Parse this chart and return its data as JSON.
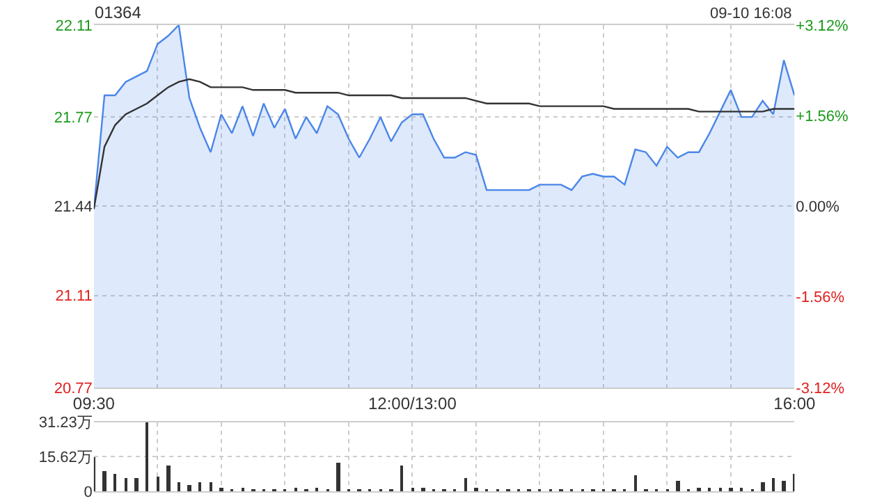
{
  "chart_data": [
    {
      "type": "line",
      "title": "01364",
      "annotations": [
        "09-10 16:08"
      ],
      "grid": true,
      "categories": [
        "09:30",
        null,
        null,
        null,
        null,
        null,
        null,
        null,
        null,
        null,
        null,
        null,
        null,
        null,
        null,
        null,
        null,
        null,
        null,
        null,
        null,
        null,
        null,
        null,
        null,
        null,
        null,
        null,
        null,
        null,
        "12:00/13:00",
        null,
        null,
        null,
        null,
        null,
        null,
        null,
        null,
        null,
        null,
        null,
        null,
        null,
        null,
        null,
        null,
        null,
        null,
        null,
        null,
        null,
        null,
        null,
        null,
        null,
        null,
        null,
        null,
        null,
        null,
        null,
        null,
        null,
        null,
        null,
        "16:00"
      ],
      "ylim": [
        20.77,
        22.11
      ],
      "yticks": [
        20.77,
        21.11,
        21.44,
        21.77,
        22.11
      ],
      "y2lim": [
        -3.12,
        3.12
      ],
      "y2ticks": [
        {
          "value": -3.12,
          "label": "-3.12%"
        },
        {
          "value": -1.56,
          "label": "-1.56%"
        },
        {
          "value": 0,
          "label": "0.00%"
        },
        {
          "value": 1.56,
          "label": "+1.56%"
        },
        {
          "value": 3.12,
          "label": "+3.12%"
        }
      ],
      "series": [
        {
          "type": "area",
          "color": "#4a86e8",
          "values": [
            21.43,
            21.85,
            21.85,
            21.9,
            21.92,
            21.94,
            22.04,
            22.07,
            22.11,
            21.84,
            21.73,
            21.64,
            21.78,
            21.71,
            21.81,
            21.7,
            21.82,
            21.73,
            21.8,
            21.69,
            21.77,
            21.71,
            21.81,
            21.78,
            21.69,
            21.62,
            21.69,
            21.77,
            21.68,
            21.75,
            21.78,
            21.78,
            21.69,
            21.62,
            21.62,
            21.64,
            21.63,
            21.5,
            21.5,
            21.5,
            21.5,
            21.5,
            21.52,
            21.52,
            21.52,
            21.5,
            21.55,
            21.56,
            21.55,
            21.55,
            21.52,
            21.65,
            21.64,
            21.59,
            21.66,
            21.62,
            21.64,
            21.64,
            21.71,
            21.79,
            21.87,
            21.77,
            21.77,
            21.83,
            21.78,
            21.98,
            21.85
          ]
        },
        {
          "type": "line",
          "color": "#333333",
          "values": [
            21.43,
            21.66,
            21.74,
            21.78,
            21.8,
            21.82,
            21.85,
            21.88,
            21.9,
            21.91,
            21.9,
            21.88,
            21.88,
            21.88,
            21.88,
            21.87,
            21.87,
            21.87,
            21.87,
            21.86,
            21.86,
            21.86,
            21.86,
            21.86,
            21.85,
            21.85,
            21.85,
            21.85,
            21.85,
            21.84,
            21.84,
            21.84,
            21.84,
            21.84,
            21.84,
            21.84,
            21.83,
            21.82,
            21.82,
            21.82,
            21.82,
            21.82,
            21.81,
            21.81,
            21.81,
            21.81,
            21.81,
            21.81,
            21.81,
            21.8,
            21.8,
            21.8,
            21.8,
            21.8,
            21.8,
            21.8,
            21.8,
            21.79,
            21.79,
            21.79,
            21.79,
            21.79,
            21.79,
            21.79,
            21.8,
            21.8,
            21.8
          ]
        }
      ]
    },
    {
      "type": "bar",
      "color": "#333333",
      "grid": true,
      "tick_labels": "y",
      "categories": [
        null,
        null,
        null,
        null,
        null,
        null,
        null,
        null,
        null,
        null,
        null,
        null,
        null,
        null,
        null,
        null,
        null,
        null,
        null,
        null,
        null,
        null,
        null,
        null,
        null,
        null,
        null,
        null,
        null,
        null,
        null,
        null,
        null,
        null,
        null,
        null,
        null,
        null,
        null,
        null,
        null,
        null,
        null,
        null,
        null,
        null,
        null,
        null,
        null,
        null,
        null,
        null,
        null,
        null,
        null,
        null,
        null,
        null,
        null,
        null,
        null,
        null,
        null,
        null,
        null,
        null,
        null
      ],
      "ylim": [
        0,
        31.23
      ],
      "yticks": [
        0,
        {
          "value": 15.62,
          "label": "15.62万"
        },
        {
          "value": 31.23,
          "label": "31.23万"
        }
      ],
      "values": [
        15.4,
        9,
        8,
        6,
        6,
        31.2,
        7,
        12,
        4,
        3,
        4,
        4.5,
        2,
        1,
        1.5,
        1,
        1,
        1,
        1,
        1.5,
        1,
        2,
        1,
        12.8,
        1,
        1,
        1,
        1,
        1,
        12,
        1.5,
        1.5,
        1,
        1,
        1,
        6,
        2,
        1,
        1,
        1,
        1,
        1,
        1,
        1,
        1,
        1,
        1,
        1,
        1,
        1,
        1,
        7.5,
        1,
        1,
        1,
        5,
        1,
        1.5,
        1.5,
        2,
        1.5,
        1.5,
        1,
        4,
        6,
        5,
        8
      ]
    }
  ]
}
